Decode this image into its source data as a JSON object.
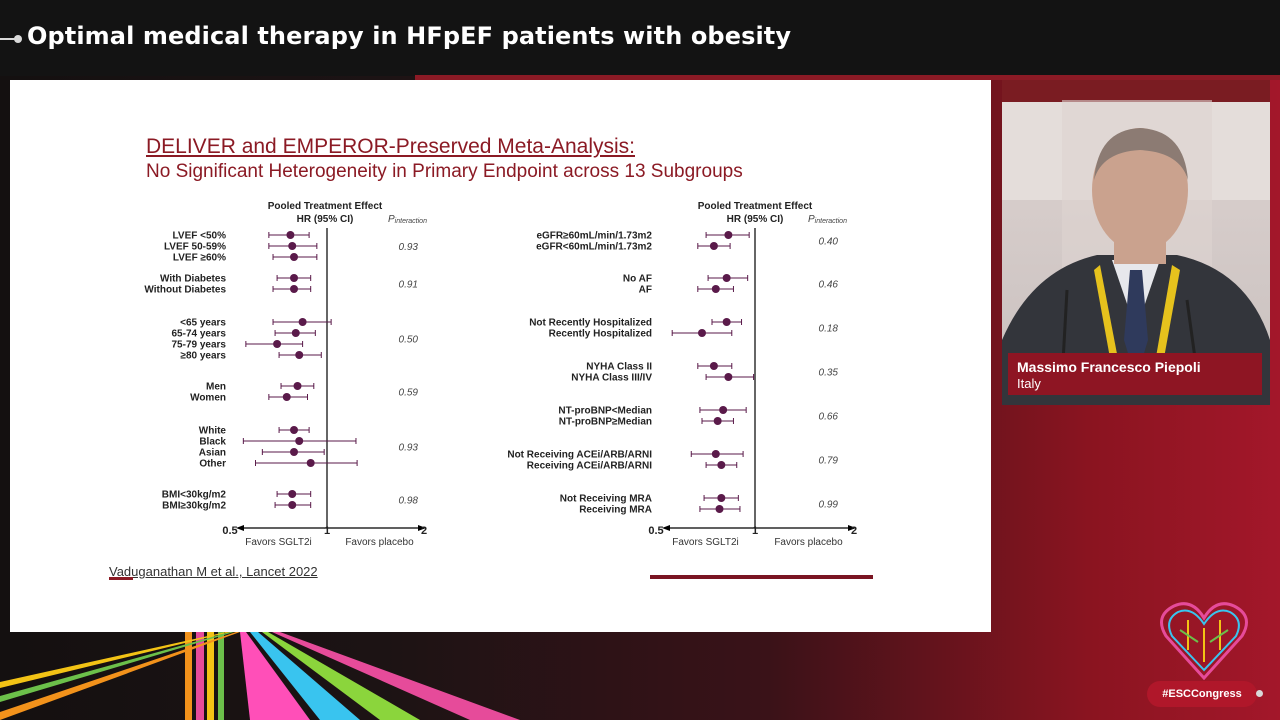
{
  "header": {
    "title": "Optimal medical therapy in HFpEF patients with obesity"
  },
  "slide": {
    "title": "DELIVER and EMPEROR-Preserved Meta-Analysis:",
    "subtitle": "No Significant Heterogeneity in Primary Endpoint across 13 Subgroups",
    "citation": "Vaduganathan M et al., Lancet 2022"
  },
  "speaker": {
    "name": "Massimo Francesco Piepoli",
    "country": "Italy"
  },
  "footer": {
    "hashtag": "#ESCCongress"
  },
  "colors": {
    "accent": "#8b1a24",
    "marker": "#5a1a4a",
    "highlight_ellipse": "#1f3a9e"
  },
  "chart_data": [
    {
      "type": "forest",
      "header_title": "Pooled Treatment Effect",
      "header_sub": "HR (95% CI)",
      "p_header": "P",
      "p_header_sub": "interaction",
      "x_scale": "log",
      "xlim": [
        0.5,
        2
      ],
      "x_ticks": [
        "0.5",
        "1",
        "2"
      ],
      "favors_left": "Favors SGLT2i",
      "favors_right": "Favors placebo",
      "highlight_group": 6,
      "groups": [
        {
          "p": "0.93",
          "rows": [
            {
              "label": "LVEF <50%",
              "hr": 0.77,
              "lo": 0.66,
              "hi": 0.88
            },
            {
              "label": "LVEF 50-59%",
              "hr": 0.78,
              "lo": 0.66,
              "hi": 0.93
            },
            {
              "label": "LVEF ≥60%",
              "hr": 0.79,
              "lo": 0.68,
              "hi": 0.93
            }
          ]
        },
        {
          "p": "0.91",
          "rows": [
            {
              "label": "With Diabetes",
              "hr": 0.79,
              "lo": 0.7,
              "hi": 0.89
            },
            {
              "label": "Without Diabetes",
              "hr": 0.79,
              "lo": 0.68,
              "hi": 0.89
            }
          ]
        },
        {
          "p": "0.50",
          "rows": [
            {
              "label": "<65 years",
              "hr": 0.84,
              "lo": 0.68,
              "hi": 1.03
            },
            {
              "label": "65-74 years",
              "hr": 0.8,
              "lo": 0.69,
              "hi": 0.92
            },
            {
              "label": "75-79 years",
              "hr": 0.7,
              "lo": 0.56,
              "hi": 0.84
            },
            {
              "label": "≥80 years",
              "hr": 0.82,
              "lo": 0.71,
              "hi": 0.96
            }
          ]
        },
        {
          "p": "0.59",
          "rows": [
            {
              "label": "Men",
              "hr": 0.81,
              "lo": 0.72,
              "hi": 0.91
            },
            {
              "label": "Women",
              "hr": 0.75,
              "lo": 0.66,
              "hi": 0.87
            }
          ]
        },
        {
          "p": "0.93",
          "rows": [
            {
              "label": "White",
              "hr": 0.79,
              "lo": 0.71,
              "hi": 0.88
            },
            {
              "label": "Black",
              "hr": 0.82,
              "lo": 0.55,
              "hi": 1.23
            },
            {
              "label": "Asian",
              "hr": 0.79,
              "lo": 0.63,
              "hi": 0.98
            },
            {
              "label": "Other",
              "hr": 0.89,
              "lo": 0.6,
              "hi": 1.24
            }
          ]
        },
        {
          "p": "0.98",
          "rows": [
            {
              "label": "BMI<30kg/m2",
              "hr": 0.78,
              "lo": 0.7,
              "hi": 0.89
            },
            {
              "label": "BMI≥30kg/m2",
              "hr": 0.78,
              "lo": 0.69,
              "hi": 0.89
            }
          ]
        }
      ]
    },
    {
      "type": "forest",
      "header_title": "Pooled Treatment Effect",
      "header_sub": "HR (95% CI)",
      "p_header": "P",
      "p_header_sub": "interaction",
      "x_scale": "log",
      "xlim": [
        0.5,
        2
      ],
      "x_ticks": [
        "0.5",
        "1",
        "2"
      ],
      "favors_left": "Favors SGLT2i",
      "favors_right": "Favors placebo",
      "groups": [
        {
          "p": "0.40",
          "rows": [
            {
              "label": "eGFR≥60mL/min/1.73m2",
              "hr": 0.83,
              "lo": 0.71,
              "hi": 0.96
            },
            {
              "label": "eGFR<60mL/min/1.73m2",
              "hr": 0.75,
              "lo": 0.67,
              "hi": 0.84
            }
          ]
        },
        {
          "p": "0.46",
          "rows": [
            {
              "label": "No AF",
              "hr": 0.82,
              "lo": 0.72,
              "hi": 0.95
            },
            {
              "label": "AF",
              "hr": 0.76,
              "lo": 0.67,
              "hi": 0.86
            }
          ]
        },
        {
          "p": "0.18",
          "rows": [
            {
              "label": "Not Recently Hospitalized",
              "hr": 0.82,
              "lo": 0.74,
              "hi": 0.91
            },
            {
              "label": "Recently Hospitalized",
              "hr": 0.69,
              "lo": 0.56,
              "hi": 0.85
            }
          ]
        },
        {
          "p": "0.35",
          "rows": [
            {
              "label": "NYHA Class II",
              "hr": 0.75,
              "lo": 0.67,
              "hi": 0.85
            },
            {
              "label": "NYHA Class III/IV",
              "hr": 0.83,
              "lo": 0.71,
              "hi": 0.99
            }
          ]
        },
        {
          "p": "0.66",
          "rows": [
            {
              "label": "NT-proBNP<Median",
              "hr": 0.8,
              "lo": 0.68,
              "hi": 0.94
            },
            {
              "label": "NT-proBNP≥Median",
              "hr": 0.77,
              "lo": 0.69,
              "hi": 0.86
            }
          ]
        },
        {
          "p": "0.79",
          "rows": [
            {
              "label": "Not Receiving ACEi/ARB/ARNI",
              "hr": 0.76,
              "lo": 0.64,
              "hi": 0.92
            },
            {
              "label": "Receiving ACEi/ARB/ARNI",
              "hr": 0.79,
              "lo": 0.71,
              "hi": 0.88
            }
          ]
        },
        {
          "p": "0.99",
          "rows": [
            {
              "label": "Not Receiving MRA",
              "hr": 0.79,
              "lo": 0.7,
              "hi": 0.89
            },
            {
              "label": "Receiving MRA",
              "hr": 0.78,
              "lo": 0.68,
              "hi": 0.9
            }
          ]
        }
      ]
    }
  ]
}
